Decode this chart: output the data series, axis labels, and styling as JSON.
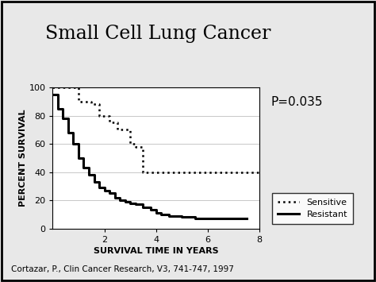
{
  "title": "Small Cell Lung Cancer",
  "xlabel": "SURVIVAL TIME IN YEARS",
  "ylabel": "PERCENT SURVIVAL",
  "p_value_text": "P=0.035",
  "footnote": "Cortazar, P., Clin Cancer Research, V3, 741-747, 1997",
  "xlim": [
    0,
    8
  ],
  "ylim": [
    0,
    100
  ],
  "xticks": [
    2,
    4,
    6,
    8
  ],
  "yticks": [
    0,
    20,
    40,
    60,
    80,
    100
  ],
  "background_color": "#e8e8e8",
  "plot_bg_color": "#ffffff",
  "border_color": "#000000",
  "sensitive_x": [
    0,
    0.3,
    0.5,
    0.7,
    1.0,
    1.3,
    1.5,
    1.8,
    2.0,
    2.2,
    2.5,
    2.8,
    3.0,
    3.2,
    3.5,
    3.8,
    4.0,
    4.5,
    5.0,
    5.5,
    6.0,
    6.5,
    7.0,
    7.5,
    8.0
  ],
  "sensitive_y": [
    100,
    100,
    100,
    100,
    90,
    90,
    88,
    80,
    80,
    75,
    70,
    70,
    60,
    58,
    40,
    40,
    40,
    40,
    40,
    40,
    40,
    40,
    40,
    40,
    40
  ],
  "resistant_x": [
    0,
    0.2,
    0.4,
    0.6,
    0.8,
    1.0,
    1.2,
    1.4,
    1.6,
    1.8,
    2.0,
    2.2,
    2.4,
    2.6,
    2.8,
    3.0,
    3.2,
    3.5,
    3.8,
    4.0,
    4.2,
    4.5,
    5.0,
    5.5,
    6.0,
    6.5,
    7.0,
    7.5
  ],
  "resistant_y": [
    95,
    85,
    78,
    68,
    60,
    50,
    43,
    38,
    33,
    29,
    27,
    25,
    22,
    20,
    19,
    18,
    17,
    15,
    13,
    11,
    10,
    9,
    8,
    7,
    7,
    7,
    7,
    7
  ],
  "sensitive_color": "#000000",
  "resistant_color": "#000000",
  "sensitive_linestyle": "dotted",
  "resistant_linestyle": "solid",
  "sensitive_linewidth": 1.8,
  "resistant_linewidth": 2.2,
  "title_fontsize": 17,
  "axis_label_fontsize": 8,
  "tick_fontsize": 8,
  "legend_fontsize": 8,
  "p_value_fontsize": 11,
  "footnote_fontsize": 7.5
}
